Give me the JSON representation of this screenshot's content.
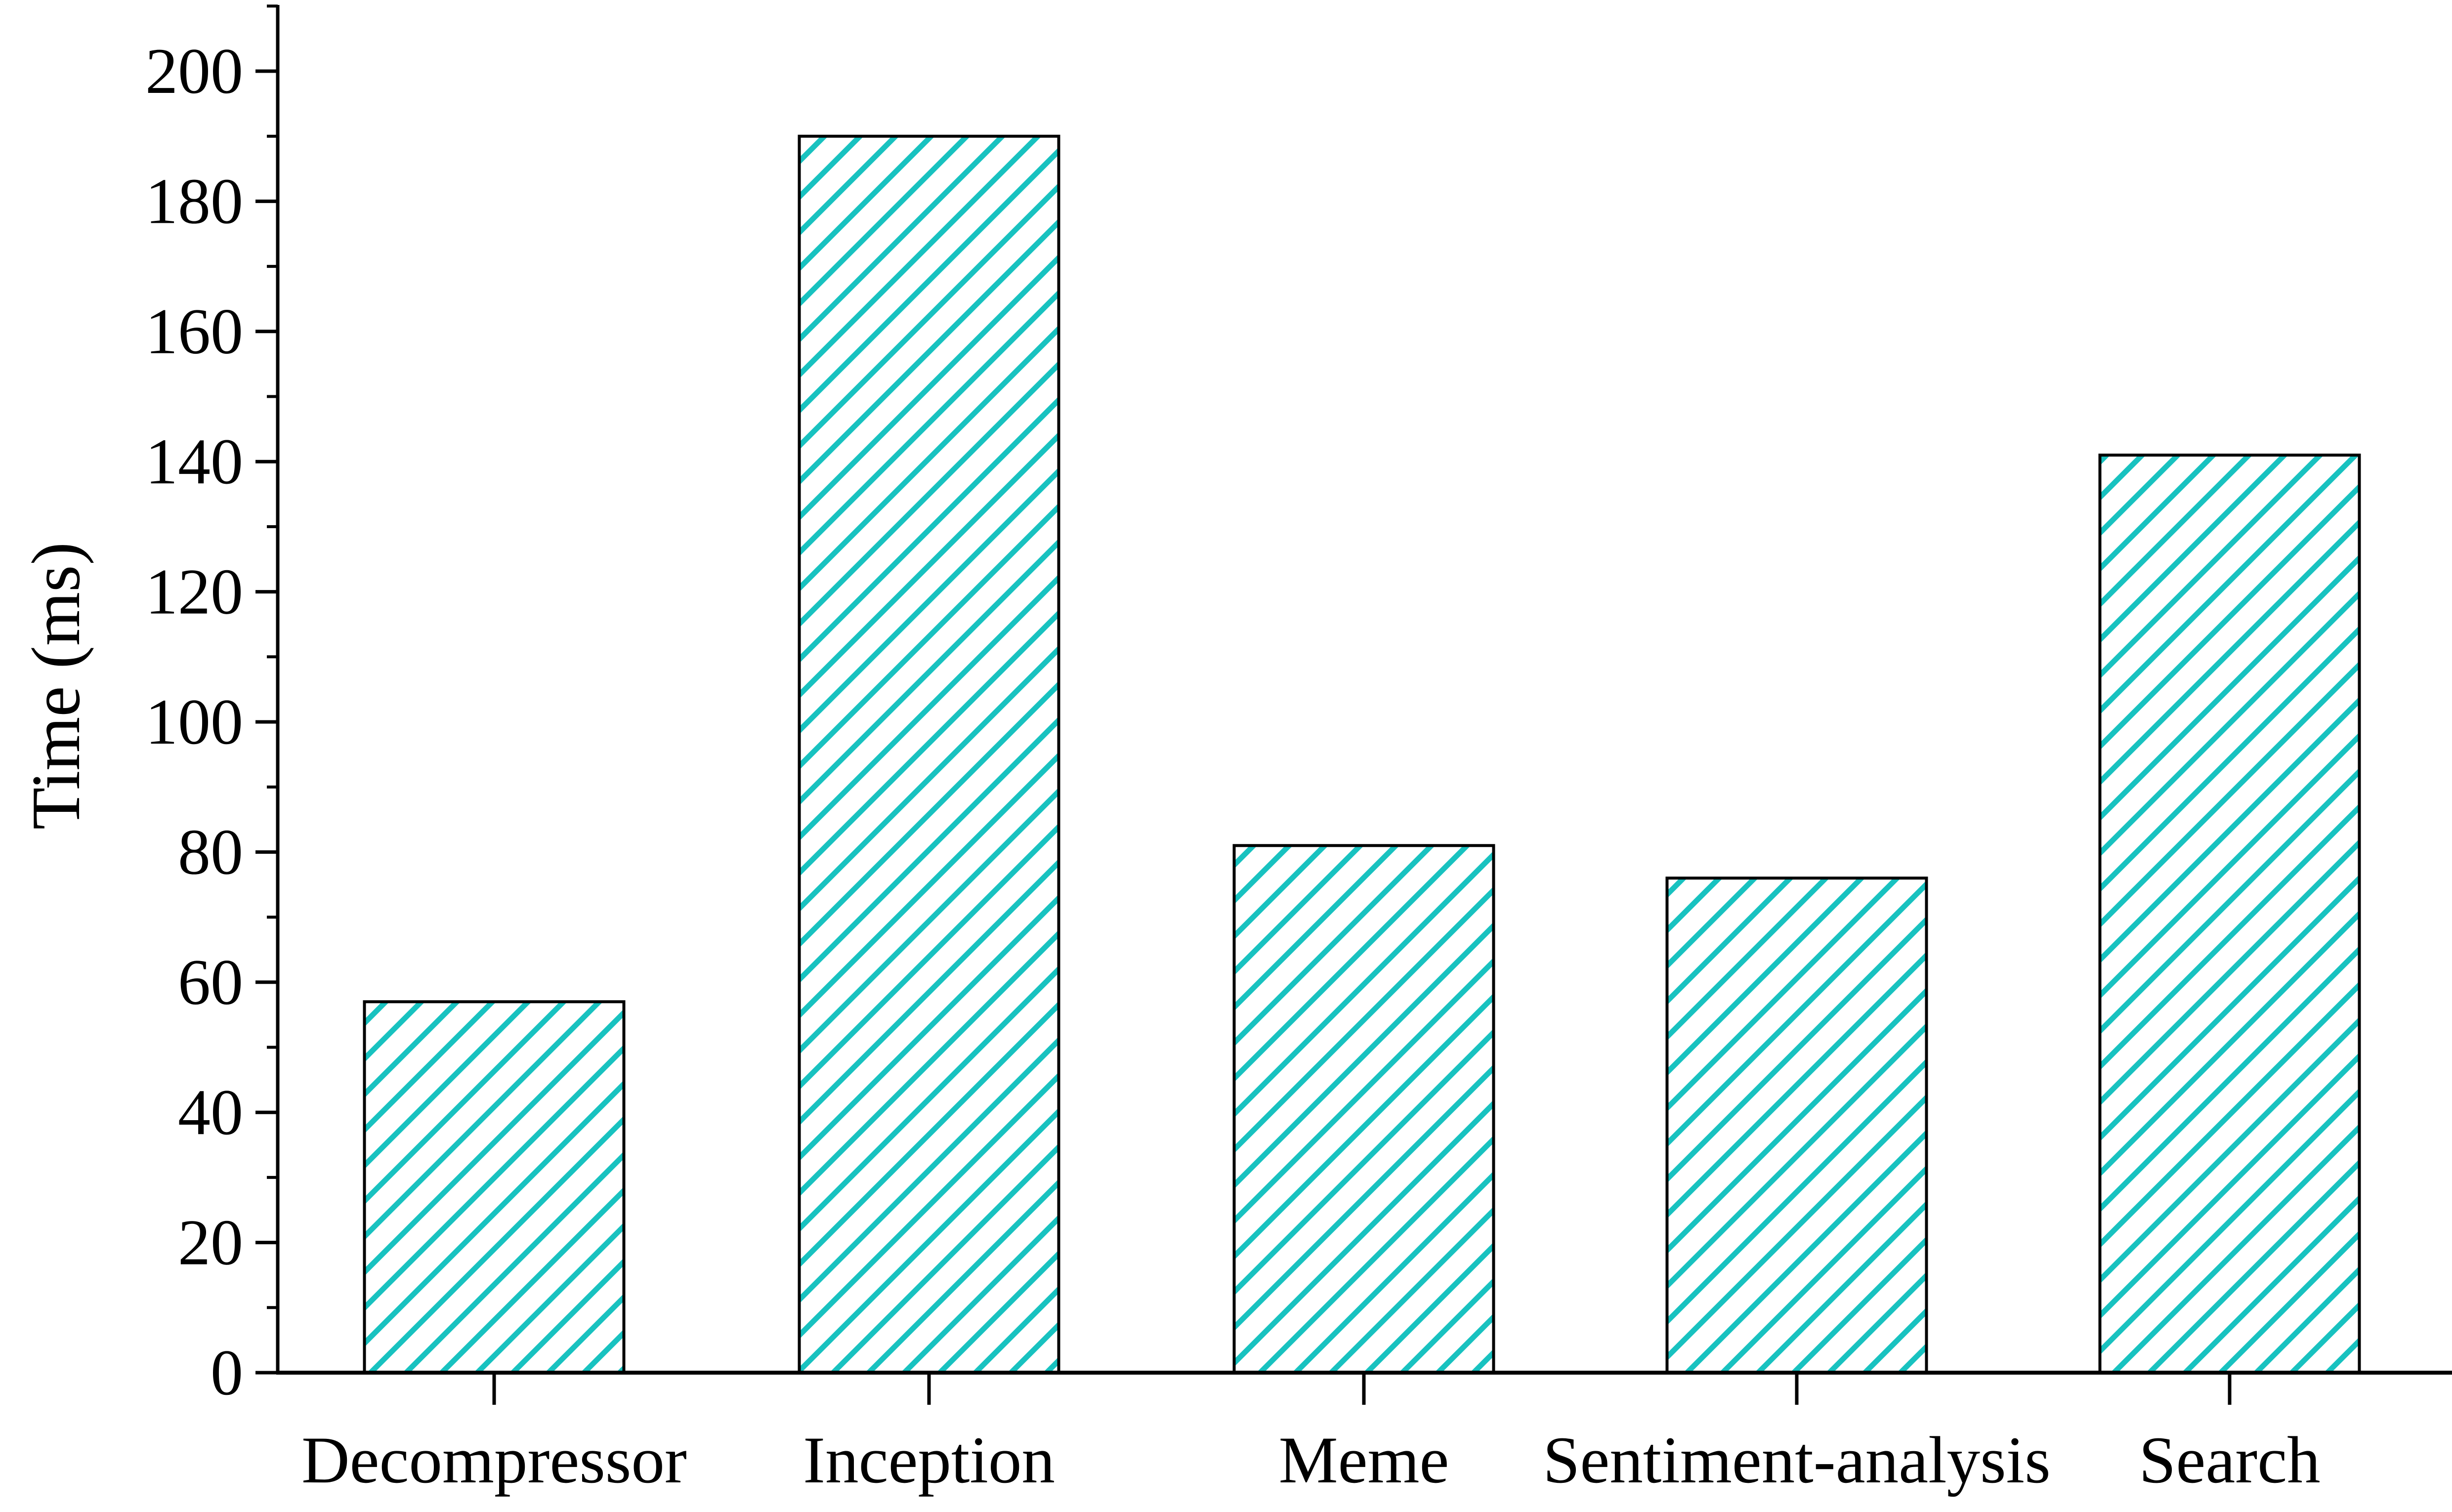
{
  "chart_data": {
    "type": "bar",
    "categories": [
      "Decompressor",
      "Inception",
      "Meme",
      "Sentiment-analysis",
      "Search"
    ],
    "values": [
      57,
      190,
      81,
      76,
      141
    ],
    "ylabel": "Time (ms)",
    "xlabel": "",
    "ylim": [
      0,
      210
    ],
    "yticks": [
      0,
      20,
      40,
      60,
      80,
      100,
      120,
      140,
      160,
      180,
      200
    ],
    "grid": false,
    "legend": "none",
    "bar_fill": "hatched",
    "colors": {
      "hatch": "#18C2C0",
      "bar_outline": "#000000",
      "axis": "#000000",
      "background": "#ffffff"
    }
  }
}
